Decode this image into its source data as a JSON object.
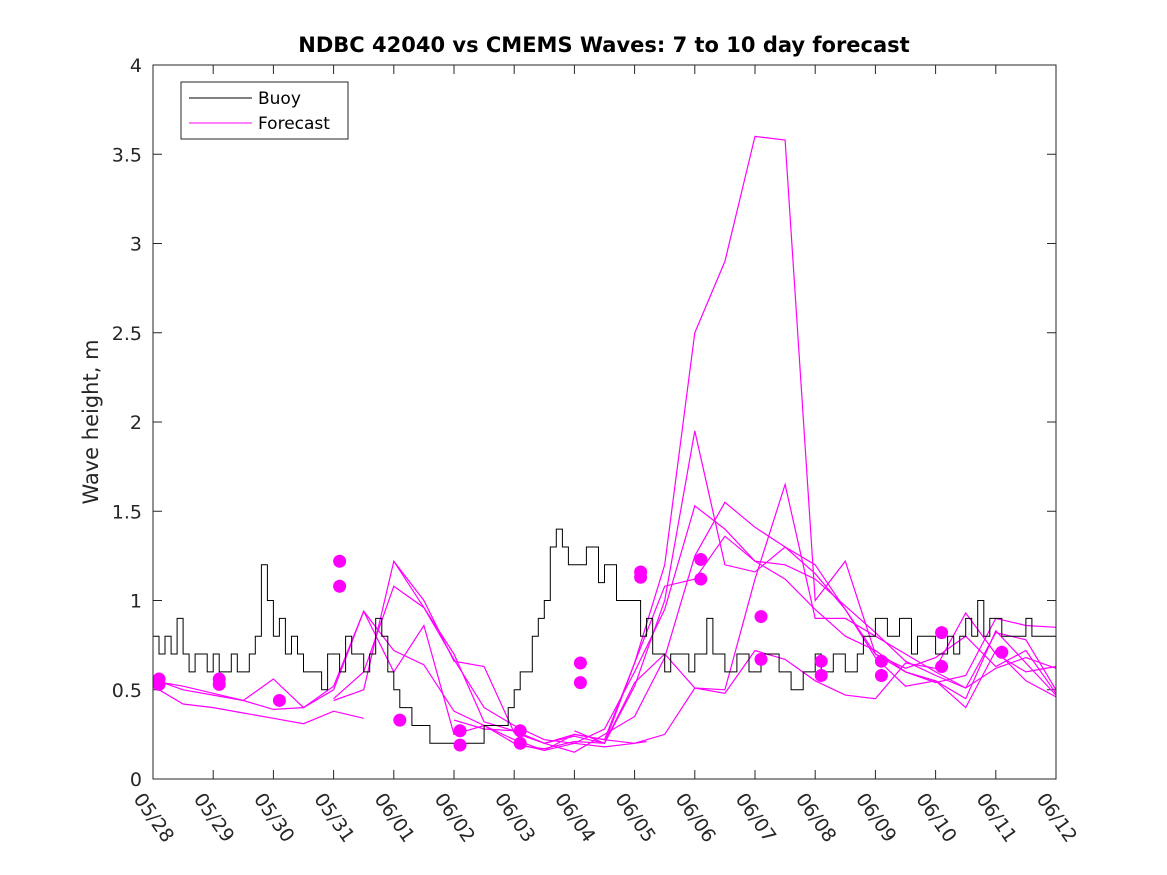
{
  "chart_data": {
    "type": "line",
    "title": "NDBC 42040 vs CMEMS Waves: 7 to 10 day forecast",
    "xlabel": "",
    "ylabel": "Wave height, m",
    "x_tick_labels": [
      "05/28",
      "05/29",
      "05/30",
      "05/31",
      "06/01",
      "06/02",
      "06/03",
      "06/04",
      "06/05",
      "06/06",
      "06/07",
      "06/08",
      "06/09",
      "06/10",
      "06/11",
      "06/12"
    ],
    "xlim_days": [
      0,
      15
    ],
    "ylim": [
      0,
      4
    ],
    "y_ticks": [
      0,
      0.5,
      1,
      1.5,
      2,
      2.5,
      3,
      3.5,
      4
    ],
    "y_tick_labels": [
      "0",
      "0.5",
      "1",
      "1.5",
      "2",
      "2.5",
      "3",
      "3.5",
      "4"
    ],
    "legend": {
      "position": "top-left",
      "entries": [
        "Buoy",
        "Forecast"
      ]
    },
    "colors": {
      "buoy": "#000000",
      "forecast": "#ff00ff"
    },
    "buoy": {
      "name": "Buoy",
      "x": [
        0,
        0.1,
        0.2,
        0.3,
        0.4,
        0.5,
        0.6,
        0.7,
        0.8,
        0.9,
        1.0,
        1.1,
        1.2,
        1.3,
        1.4,
        1.5,
        1.6,
        1.7,
        1.8,
        1.9,
        2.0,
        2.1,
        2.2,
        2.3,
        2.4,
        2.5,
        2.6,
        2.7,
        2.8,
        2.9,
        3.0,
        3.1,
        3.2,
        3.3,
        3.4,
        3.5,
        3.6,
        3.7,
        3.8,
        3.9,
        4.0,
        4.1,
        4.2,
        4.3,
        4.4,
        4.5,
        4.6,
        4.7,
        4.8,
        4.9,
        5.0,
        5.1,
        5.2,
        5.3,
        5.4,
        5.5,
        5.6,
        5.7,
        5.8,
        5.9,
        6.0,
        6.1,
        6.2,
        6.3,
        6.4,
        6.5,
        6.6,
        6.7,
        6.8,
        6.9,
        7.0,
        7.1,
        7.2,
        7.3,
        7.4,
        7.5,
        7.6,
        7.7,
        7.8,
        7.9,
        8.0,
        8.1,
        8.2,
        8.3,
        8.4,
        8.5,
        8.6,
        8.7,
        8.8,
        8.9,
        9.0,
        9.1,
        9.2,
        9.3,
        9.4,
        9.5,
        9.6,
        9.7,
        9.8,
        9.9,
        10.0,
        10.1,
        10.2,
        10.3,
        10.4,
        10.5,
        10.6,
        10.7,
        10.8,
        10.9,
        11.0,
        11.1,
        11.2,
        11.3,
        11.4,
        11.5,
        11.6,
        11.7,
        11.8,
        11.9,
        12.0,
        12.1,
        12.2,
        12.3,
        12.4,
        12.5,
        12.6,
        12.7,
        12.8,
        12.9,
        13.0,
        13.1,
        13.2,
        13.3,
        13.4,
        13.5,
        13.6,
        13.7,
        13.8,
        13.9,
        14.0,
        14.1,
        14.2,
        14.3,
        14.4,
        14.5,
        14.6,
        14.7,
        14.8,
        14.9,
        15.0
      ],
      "y": [
        0.8,
        0.7,
        0.8,
        0.7,
        0.9,
        0.7,
        0.6,
        0.7,
        0.7,
        0.6,
        0.7,
        0.6,
        0.6,
        0.7,
        0.6,
        0.6,
        0.7,
        0.8,
        1.2,
        1.0,
        0.8,
        0.9,
        0.7,
        0.8,
        0.7,
        0.6,
        0.6,
        0.6,
        0.5,
        0.7,
        0.7,
        0.6,
        0.8,
        0.7,
        0.7,
        0.6,
        0.7,
        0.9,
        0.8,
        0.6,
        0.5,
        0.4,
        0.4,
        0.3,
        0.3,
        0.3,
        0.2,
        0.2,
        0.2,
        0.2,
        0.2,
        0.2,
        0.2,
        0.2,
        0.2,
        0.3,
        0.3,
        0.3,
        0.3,
        0.4,
        0.5,
        0.6,
        0.6,
        0.8,
        0.9,
        1.0,
        1.3,
        1.4,
        1.3,
        1.2,
        1.2,
        1.2,
        1.3,
        1.3,
        1.1,
        1.2,
        1.2,
        1.0,
        1.0,
        1.0,
        1.0,
        0.8,
        0.9,
        0.7,
        0.7,
        0.6,
        0.7,
        0.7,
        0.7,
        0.6,
        0.7,
        0.7,
        0.9,
        0.7,
        0.7,
        0.6,
        0.6,
        0.7,
        0.7,
        0.6,
        0.6,
        0.7,
        0.7,
        0.7,
        0.6,
        0.6,
        0.5,
        0.5,
        0.6,
        0.6,
        0.7,
        0.6,
        0.6,
        0.7,
        0.7,
        0.6,
        0.6,
        0.7,
        0.8,
        0.8,
        0.9,
        0.9,
        0.8,
        0.8,
        0.9,
        0.9,
        0.7,
        0.8,
        0.8,
        0.8,
        0.7,
        0.7,
        0.8,
        0.7,
        0.8,
        0.9,
        0.8,
        1.0,
        0.8,
        0.9,
        0.9,
        0.8,
        0.8,
        0.8,
        0.8,
        0.9,
        0.8,
        0.8,
        0.8,
        0.8,
        0.9
      ]
    },
    "forecast": {
      "name": "Forecast",
      "series": [
        {
          "x": [
            0,
            0.5,
            1,
            1.5,
            2,
            2.5,
            3,
            3.5
          ],
          "y": [
            0.52,
            0.42,
            0.4,
            0.37,
            0.34,
            0.31,
            0.38,
            0.34
          ]
        },
        {
          "x": [
            0,
            0.5,
            1,
            1.5,
            2,
            2.5,
            3,
            3.5,
            4,
            4.5,
            5,
            5.5,
            6,
            6.5,
            7,
            7.5,
            8,
            8.2
          ],
          "y": [
            0.56,
            0.5,
            0.47,
            0.44,
            0.39,
            0.4,
            0.52,
            0.94,
            0.6,
            0.86,
            0.25,
            0.3,
            0.2,
            0.16,
            0.2,
            0.18,
            0.2,
            0.21
          ]
        },
        {
          "x": [
            0,
            0.5,
            1,
            1.5,
            2,
            2.5,
            3,
            3.5,
            4,
            4.5,
            5,
            5.5,
            6,
            6.5,
            7,
            7.5,
            8,
            8.5,
            9,
            9.5,
            10,
            10.5,
            11,
            11.5,
            12,
            12.5,
            13,
            13.5,
            14,
            14.5,
            15
          ],
          "y": [
            0.55,
            0.52,
            0.48,
            0.44,
            0.56,
            0.4,
            0.5,
            0.94,
            0.72,
            0.64,
            0.38,
            0.3,
            0.22,
            0.16,
            0.25,
            0.22,
            0.2,
            0.25,
            0.51,
            0.48,
            0.72,
            0.67,
            0.55,
            0.47,
            0.45,
            0.65,
            0.62,
            0.93,
            0.7,
            0.6,
            0.63
          ]
        },
        {
          "x": [
            3,
            3.5,
            4,
            4.5,
            5,
            5.5,
            6,
            6.5,
            7,
            7.5,
            8,
            8.5,
            9,
            9.5,
            10,
            10.5,
            11,
            11.5,
            12,
            12.5,
            13,
            13.5,
            14,
            14.5,
            15
          ],
          "y": [
            0.44,
            0.5,
            1.22,
            0.96,
            0.7,
            0.32,
            0.27,
            0.2,
            0.15,
            0.25,
            0.35,
            0.68,
            1.25,
            1.55,
            1.41,
            1.3,
            1.15,
            0.95,
            0.68,
            0.52,
            0.55,
            0.4,
            0.72,
            0.55,
            0.46
          ]
        },
        {
          "x": [
            3,
            3.5,
            4,
            4.5,
            5,
            5.5,
            6,
            6.5,
            7,
            7.5,
            8,
            8.5,
            9,
            9.5,
            10,
            10.5,
            11,
            11.5,
            12,
            12.5,
            13,
            13.5,
            14,
            14.5,
            15
          ],
          "y": [
            0.45,
            0.6,
            1.08,
            0.96,
            0.67,
            0.4,
            0.3,
            0.22,
            0.2,
            0.28,
            0.6,
            0.95,
            1.53,
            1.4,
            1.22,
            1.12,
            0.95,
            0.8,
            0.72,
            0.6,
            0.55,
            0.45,
            0.83,
            0.65,
            0.47
          ]
        },
        {
          "x": [
            4,
            4.5,
            5,
            5.5,
            6,
            6.5,
            7,
            7.5,
            8,
            8.5,
            9,
            9.5,
            10,
            10.5,
            11,
            11.5,
            12,
            12.5,
            13,
            13.5,
            14,
            14.5,
            15
          ],
          "y": [
            1.22,
            1.0,
            0.66,
            0.63,
            0.26,
            0.2,
            0.24,
            0.2,
            0.65,
            1.2,
            2.5,
            2.9,
            3.6,
            3.58,
            1.0,
            1.22,
            0.7,
            0.6,
            0.54,
            0.58,
            0.9,
            0.86,
            0.85
          ]
        },
        {
          "x": [
            5,
            5.5,
            6,
            6.5,
            7,
            7.5,
            8,
            8.5,
            9,
            9.5,
            10,
            10.5,
            11,
            11.5,
            12,
            12.5,
            13,
            13.5,
            14,
            14.5,
            15
          ],
          "y": [
            0.33,
            0.28,
            0.27,
            0.2,
            0.25,
            0.22,
            0.65,
            1.08,
            1.12,
            1.36,
            1.22,
            1.2,
            1.12,
            0.97,
            0.82,
            0.66,
            0.58,
            0.51,
            0.62,
            0.68,
            0.62
          ]
        },
        {
          "x": [
            6,
            6.5,
            7,
            7.5,
            8,
            8.5,
            9,
            9.5,
            10,
            10.5,
            11,
            11.5,
            12,
            12.5,
            13,
            13.5,
            14,
            14.5,
            15
          ],
          "y": [
            0.19,
            0.17,
            0.21,
            0.2,
            0.54,
            0.7,
            0.51,
            0.5,
            1.12,
            1.65,
            0.9,
            0.9,
            0.8,
            0.7,
            0.6,
            0.51,
            0.82,
            0.78,
            0.5
          ]
        },
        {
          "x": [
            7,
            7.5,
            8,
            8.5,
            9,
            9.5,
            10,
            10.5,
            11,
            11.5,
            12,
            12.5,
            13,
            13.5,
            14,
            14.5,
            15
          ],
          "y": [
            0.27,
            0.2,
            0.52,
            1.0,
            1.95,
            1.2,
            1.16,
            1.3,
            1.2,
            0.95,
            0.7,
            0.62,
            0.68,
            0.8,
            0.63,
            0.72,
            0.48
          ]
        }
      ],
      "markers": {
        "x": [
          0.1,
          0.1,
          1.1,
          1.1,
          2.1,
          3.1,
          3.1,
          4.1,
          5.1,
          5.1,
          6.1,
          6.1,
          7.1,
          7.1,
          8.1,
          8.1,
          9.1,
          9.1,
          10.1,
          10.1,
          11.1,
          11.1,
          12.1,
          12.1,
          13.1,
          13.1,
          14.1
        ],
        "y": [
          0.53,
          0.56,
          0.53,
          0.56,
          0.44,
          1.22,
          1.08,
          0.33,
          0.27,
          0.19,
          0.27,
          0.2,
          0.65,
          0.54,
          1.16,
          1.13,
          1.23,
          1.12,
          0.91,
          0.67,
          0.66,
          0.58,
          0.66,
          0.58,
          0.82,
          0.63,
          0.71
        ]
      }
    }
  }
}
